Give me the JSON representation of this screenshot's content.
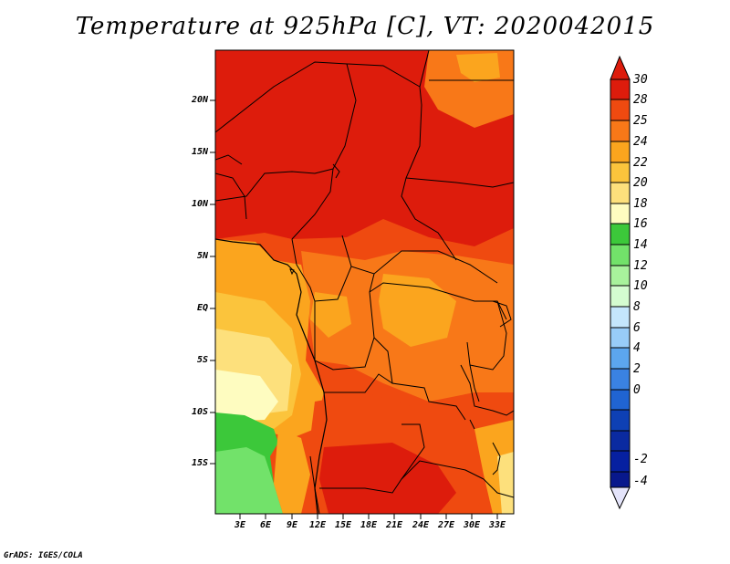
{
  "title": "Temperature at 925hPa [C], VT: 2020042015",
  "footer": "GrADS: IGES/COLA",
  "map": {
    "lat_labels": [
      "20N",
      "15N",
      "10N",
      "5N",
      "EQ",
      "5S",
      "10S",
      "15S"
    ],
    "lon_labels": [
      "3E",
      "6E",
      "9E",
      "12E",
      "15E",
      "18E",
      "21E",
      "24E",
      "27E",
      "30E",
      "33E"
    ]
  },
  "colorbar": {
    "labels": [
      "30",
      "28",
      "25",
      "24",
      "22",
      "20",
      "18",
      "16",
      "14",
      "12",
      "10",
      "8",
      "6",
      "4",
      "2",
      "0",
      "-2",
      "-4"
    ],
    "colors": [
      "#dd1c0c",
      "#ef4a10",
      "#f87818",
      "#fba51e",
      "#fbc43c",
      "#fde07c",
      "#fefcc0",
      "#3cc83a",
      "#72e26a",
      "#a8f29c",
      "#d4fcd0",
      "#c4e6fc",
      "#98ccf8",
      "#5ca6ee",
      "#3a82e2",
      "#2064d2",
      "#0e40b4",
      "#08188c"
    ],
    "top_arrow_color": "#dd1c0c",
    "bottom_arrow_color": "#e4e4fa"
  }
}
